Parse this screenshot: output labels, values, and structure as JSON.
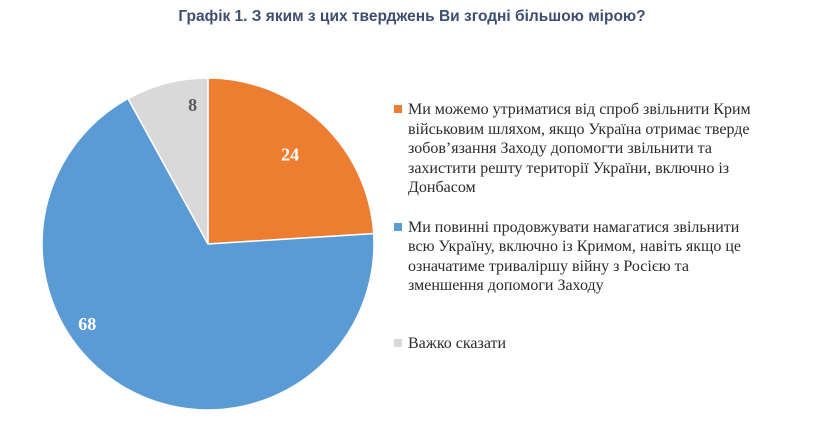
{
  "chart_data": {
    "type": "pie",
    "title": "Графік 1. З яким з цих тверджень Ви згодні більшою мірою?",
    "slices": [
      {
        "label": "Ми можемо утриматися від спроб звільнити Крим військовим шляхом, якщо Україна отримає тверде зобов’язання Заходу допомогти звільнити та захистити решту території України, включно із Донбасом",
        "value": 24,
        "value_label": "24",
        "color": "#ed7d31",
        "label_color": "#ffffff"
      },
      {
        "label": "Ми повинні продовжувати намагатися звільнити всю Україну, включно із Кримом, навіть якщо це означатиме триваліршу війну з Росією та зменшення допомоги Заходу",
        "value": 68,
        "value_label": "68",
        "color": "#5b9bd5",
        "label_color": "#ffffff"
      },
      {
        "label": "Важко сказати",
        "value": 8,
        "value_label": "8",
        "color": "#d9d9d9",
        "label_color": "#595959"
      }
    ],
    "start_angle_deg": 0,
    "direction": "clockwise",
    "legend_position": "right"
  }
}
